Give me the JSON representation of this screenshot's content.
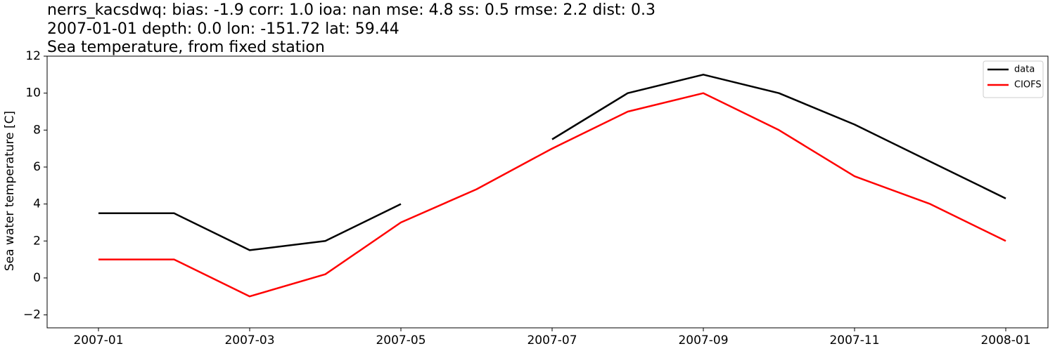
{
  "chart_data": {
    "type": "line",
    "title_lines": [
      "nerrs_kacsdwq: bias: -1.9  corr: 1.0  ioa: nan  mse: 4.8  ss: 0.5  rmse: 2.2  dist: 0.3",
      "2007-01-01 depth: 0.0 lon: -151.72 lat: 59.44",
      "Sea temperature, from fixed station"
    ],
    "y_label": "Sea water temperature [C]",
    "x": [
      "2007-01",
      "2007-02",
      "2007-03",
      "2007-04",
      "2007-05",
      "2007-06",
      "2007-07",
      "2007-08",
      "2007-09",
      "2007-10",
      "2007-11",
      "2007-12",
      "2008-01"
    ],
    "series": [
      {
        "name": "data",
        "color": "#000000",
        "values": [
          3.5,
          3.5,
          1.5,
          2.0,
          4.0,
          null,
          7.5,
          10.0,
          11.0,
          10.0,
          8.3,
          6.3,
          4.3
        ]
      },
      {
        "name": "CIOFS",
        "color": "#ff0000",
        "values": [
          1.0,
          1.0,
          -1.0,
          0.2,
          3.0,
          4.8,
          7.0,
          9.0,
          10.0,
          8.0,
          5.5,
          4.0,
          2.0
        ]
      }
    ],
    "xticks": [
      "2007-01",
      "2007-03",
      "2007-05",
      "2007-07",
      "2007-09",
      "2007-11",
      "2008-01"
    ],
    "ylim": [
      -2.7,
      12
    ],
    "yticks": [
      {
        "value": -2,
        "label": "−2"
      },
      0,
      2,
      4,
      6,
      8,
      10,
      12
    ],
    "legend": "upper right"
  }
}
